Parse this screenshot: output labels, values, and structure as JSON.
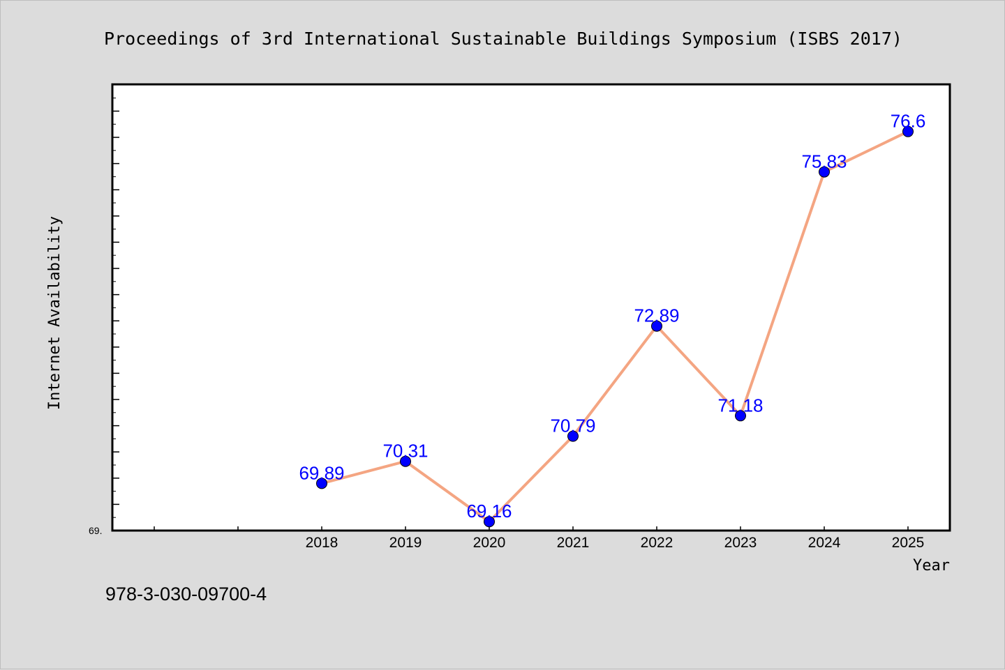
{
  "isbn": "978-3-030-09700-4",
  "colors": {
    "background": "#dcdcdc",
    "plot_background": "#ffffff",
    "line": "#f4a582",
    "marker": "#0000ff",
    "data_label": "#0000ff"
  },
  "chart_data": {
    "type": "line",
    "title": "Proceedings of 3rd International Sustainable Buildings Symposium (ISBS 2017)",
    "xlabel": "Year",
    "ylabel": "Internet Availability",
    "categories": [
      "2018",
      "2019",
      "2020",
      "2021",
      "2022",
      "2023",
      "2024",
      "2025"
    ],
    "series": [
      {
        "values": [
          69.89,
          70.31,
          69.16,
          70.79,
          72.89,
          71.18,
          75.83,
          76.6
        ],
        "labels": [
          "69.89",
          "70.31",
          "69.16",
          "70.79",
          "72.89",
          "71.18",
          "75.83",
          "76.6"
        ]
      }
    ],
    "y_min_label": "69.",
    "ylim": [
      68.99,
      77.5
    ],
    "grid": false,
    "legend": "none"
  }
}
